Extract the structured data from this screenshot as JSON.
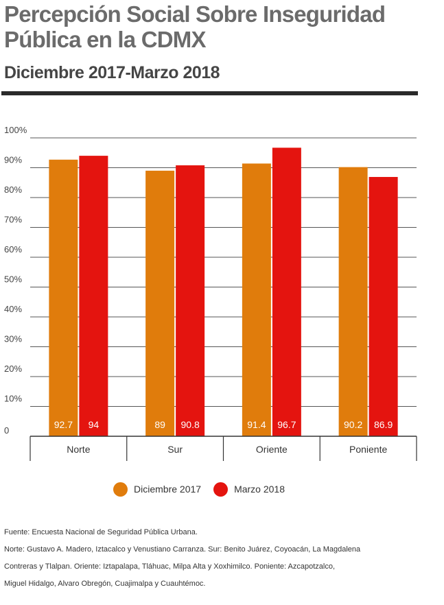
{
  "header": {
    "title": "Percepción Social Sobre Inseguridad Pública en la CDMX",
    "subtitle": "Diciembre 2017-Marzo 2018"
  },
  "colors": {
    "diciembre": "#e07c0c",
    "marzo": "#e4140f",
    "grid": "#555555",
    "axis_text": "#444444"
  },
  "legend": {
    "items": [
      {
        "label": "Diciembre 2017"
      },
      {
        "label": "Marzo 2018"
      }
    ]
  },
  "chart_data": {
    "type": "bar",
    "title": "Percepción Social Sobre Inseguridad Pública en la CDMX",
    "subtitle": "Diciembre 2017-Marzo 2018",
    "categories": [
      "Norte",
      "Sur",
      "Oriente",
      "Poniente"
    ],
    "series": [
      {
        "name": "Diciembre 2017",
        "values": [
          92.7,
          89,
          91.4,
          90.2
        ],
        "labels": [
          "92.7",
          "89",
          "91.4",
          "90.2"
        ]
      },
      {
        "name": "Marzo 2018",
        "values": [
          94,
          90.8,
          96.7,
          86.9
        ],
        "labels": [
          "94",
          "90.8",
          "96.7",
          "86.9"
        ]
      }
    ],
    "yticks": [
      "0",
      "10%",
      "20%",
      "30%",
      "40%",
      "50%",
      "60%",
      "70%",
      "80%",
      "90%",
      "100%"
    ],
    "ylim": [
      0,
      100
    ],
    "xlabel": "",
    "ylabel": "",
    "grid": true,
    "legend_position": "bottom",
    "data_labels": "inside-bottom"
  },
  "footer": {
    "source": "Fuente: Encuesta Nacional de Seguridad Pública Urbana.",
    "note_lines": [
      "Norte: Gustavo A. Madero, Iztacalco y Venustiano Carranza. Sur: Benito Juárez, Coyoacán, La Magdalena",
      "Contreras y Tlalpan. Oriente: Iztapalapa, Tláhuac, Milpa Alta y Xoxhimilco. Poniente: Azcapotzalco,",
      "Miguel Hidalgo, Alvaro Obregón, Cuajimalpa y Cuauhtémoc."
    ]
  }
}
